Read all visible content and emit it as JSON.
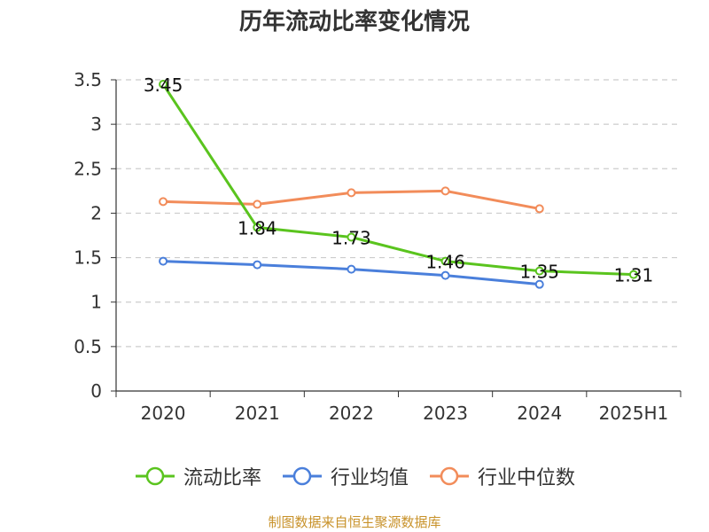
{
  "chart_data": {
    "type": "line",
    "title": "历年流动比率变化情况",
    "categories": [
      "2020",
      "2021",
      "2022",
      "2023",
      "2024",
      "2025H1"
    ],
    "ylim": [
      0,
      3.5
    ],
    "yticks": [
      "0",
      "0.5",
      "1",
      "1.5",
      "2",
      "2.5",
      "3",
      "3.5"
    ],
    "grid": true,
    "legend_position": "bottom",
    "series": [
      {
        "name": "流动比率",
        "color": "#5ac41e",
        "values": [
          3.45,
          1.84,
          1.73,
          1.46,
          1.35,
          1.31
        ],
        "labels": [
          "3.45",
          "1.84",
          "1.73",
          "1.46",
          "1.35",
          "1.31"
        ]
      },
      {
        "name": "行业均值",
        "color": "#4a7fdb",
        "values": [
          1.46,
          1.42,
          1.37,
          1.3,
          1.2,
          null
        ]
      },
      {
        "name": "行业中位数",
        "color": "#f28c5a",
        "values": [
          2.13,
          2.1,
          2.23,
          2.25,
          2.05,
          null
        ]
      }
    ]
  },
  "footer": {
    "source": "制图数据来自恒生聚源数据库"
  }
}
